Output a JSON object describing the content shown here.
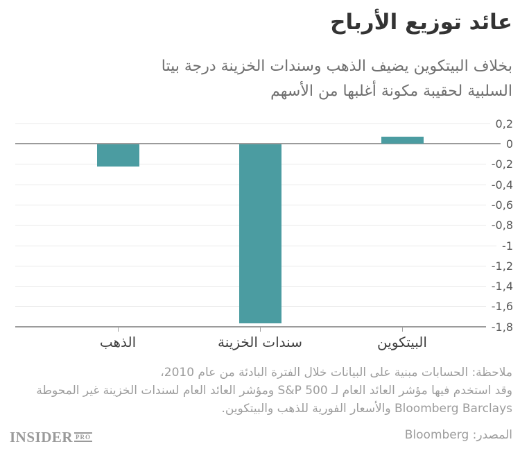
{
  "header": {
    "title": "عائد توزيع الأرباح",
    "subtitle_line1": "بخلاف البيتكوين يضيف الذهب وسندات الخزينة درجة بيتا",
    "subtitle_line2": "السلبية لحقيبة مكونة أغلبها من الأسهم"
  },
  "chart_data": {
    "type": "bar",
    "categories": [
      "الذهب",
      "سندات الخزينة",
      "البيتكوين"
    ],
    "values": [
      -0.22,
      -1.76,
      0.07
    ],
    "title": "عائد توزيع الأرباح",
    "xlabel": "",
    "ylabel": "",
    "ylim": [
      -1.8,
      0.2
    ],
    "ytick_step": 0.2,
    "ytick_labels": [
      "0,2",
      "0",
      "-0,2",
      "-0,4",
      "-0,6",
      "-0,8",
      "-1",
      "-1,2",
      "-1,4",
      "-1,6",
      "-1,8"
    ],
    "grid": true,
    "legend": false,
    "bar_color": "#4b9ca1",
    "zero_line_color": "#9b9b9b",
    "grid_color": "#e9e9e9",
    "decimal_separator": ","
  },
  "notes": {
    "line1": "ملاحظة: الحسابات مبنية على البيانات خلال الفترة البادئة من عام 2010،",
    "line2": "وقد استخدم فيها مؤشر العائد العام لـ S&P 500 ومؤشر العائد العام لسندات الخزينة غير المحوطة",
    "line3": "Bloomberg Barclays والأسعار الفورية للذهب والبيتكوين.",
    "source": "المصدر: Bloomberg"
  },
  "branding": {
    "name": "INSIDER",
    "suffix": "PRO"
  }
}
